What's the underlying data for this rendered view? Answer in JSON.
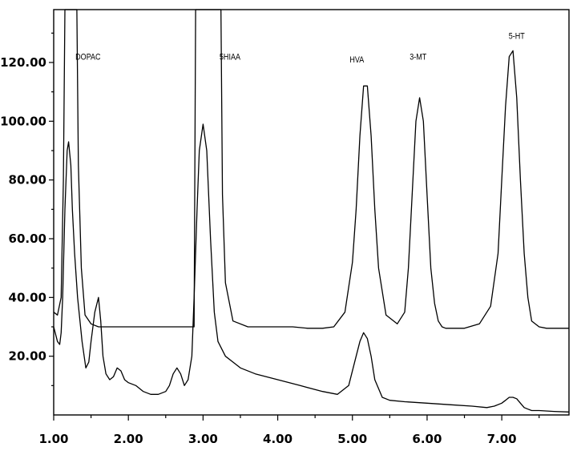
{
  "chart_data": {
    "type": "line",
    "title": "",
    "xlabel": "",
    "ylabel": "",
    "xlim": [
      1.0,
      7.9
    ],
    "ylim": [
      0,
      138
    ],
    "x_ticks": [
      {
        "value": 1,
        "label": "1.00"
      },
      {
        "value": 2,
        "label": "2.00"
      },
      {
        "value": 3,
        "label": "3.00"
      },
      {
        "value": 4,
        "label": "4.00"
      },
      {
        "value": 5,
        "label": "5.00"
      },
      {
        "value": 6,
        "label": "6.00"
      },
      {
        "value": 7,
        "label": "7.00"
      }
    ],
    "y_ticks": [
      {
        "value": 20,
        "label": "20.00"
      },
      {
        "value": 40,
        "label": "40.00"
      },
      {
        "value": 60,
        "label": "60.00"
      },
      {
        "value": 80,
        "label": "80.00"
      },
      {
        "value": 100,
        "label": "100.00"
      },
      {
        "value": 120,
        "label": "120.00"
      }
    ],
    "grid": false,
    "legend": "none",
    "annotations": [
      {
        "text": "DOPAC",
        "x": 1.46,
        "y": 121
      },
      {
        "text": "5HIAA",
        "x": 3.36,
        "y": 121
      },
      {
        "text": "HVA",
        "x": 5.06,
        "y": 120
      },
      {
        "text": "3-MT",
        "x": 5.88,
        "y": 121
      },
      {
        "text": "5-HT",
        "x": 7.2,
        "y": 128
      }
    ],
    "series": [
      {
        "x": [
          1.0,
          1.05,
          1.1,
          1.13,
          1.15,
          1.18,
          1.31,
          1.33,
          1.37,
          1.42,
          1.5,
          1.6,
          1.8,
          2.0,
          2.4,
          2.8,
          2.83,
          2.85,
          2.88,
          2.9,
          3.24,
          3.26,
          3.3,
          3.4,
          3.6,
          3.8,
          4.0,
          4.2,
          4.4,
          4.6,
          4.75,
          4.9,
          5.0,
          5.05,
          5.1,
          5.15,
          5.2,
          5.25,
          5.3,
          5.35,
          5.45,
          5.6,
          5.7,
          5.75,
          5.8,
          5.85,
          5.9,
          5.95,
          6.0,
          6.05,
          6.1,
          6.15,
          6.2,
          6.25,
          6.35,
          6.5,
          6.7,
          6.85,
          6.95,
          7.0,
          7.05,
          7.1,
          7.15,
          7.2,
          7.25,
          7.3,
          7.35,
          7.4,
          7.5,
          7.6,
          7.8,
          7.9
        ],
        "values": [
          35,
          34,
          40,
          80,
          138,
          138,
          138,
          85,
          50,
          34,
          31,
          30,
          30,
          30,
          30,
          30,
          30,
          30,
          30,
          138,
          138,
          75,
          45,
          32,
          30,
          30,
          30,
          30,
          29.5,
          29.5,
          30,
          35,
          52,
          70,
          95,
          112,
          112,
          95,
          70,
          50,
          34,
          31,
          35,
          50,
          75,
          100,
          108,
          100,
          75,
          50,
          38,
          32,
          30,
          29.5,
          29.5,
          29.5,
          31,
          37,
          55,
          80,
          105,
          122,
          124,
          108,
          80,
          55,
          40,
          32,
          30,
          29.5,
          29.5,
          29.5
        ]
      },
      {
        "x": [
          1.0,
          1.05,
          1.08,
          1.1,
          1.12,
          1.15,
          1.18,
          1.2,
          1.23,
          1.25,
          1.28,
          1.32,
          1.38,
          1.43,
          1.47,
          1.5,
          1.55,
          1.6,
          1.63,
          1.66,
          1.7,
          1.75,
          1.8,
          1.85,
          1.9,
          1.95,
          2.0,
          2.1,
          2.2,
          2.3,
          2.4,
          2.5,
          2.55,
          2.6,
          2.65,
          2.7,
          2.75,
          2.8,
          2.85,
          2.88,
          2.92,
          2.95,
          3.0,
          3.05,
          3.1,
          3.15,
          3.2,
          3.3,
          3.4,
          3.5,
          3.7,
          4.0,
          4.3,
          4.6,
          4.8,
          4.95,
          5.05,
          5.1,
          5.15,
          5.2,
          5.25,
          5.3,
          5.4,
          5.5,
          5.7,
          6.0,
          6.3,
          6.6,
          6.8,
          6.9,
          7.0,
          7.05,
          7.1,
          7.15,
          7.2,
          7.25,
          7.3,
          7.35,
          7.4,
          7.5,
          7.7,
          7.9
        ],
        "values": [
          30,
          25,
          24,
          28,
          40,
          70,
          90,
          93,
          85,
          70,
          55,
          40,
          25,
          16,
          18,
          25,
          35,
          40,
          32,
          20,
          14,
          12,
          13,
          16,
          15,
          12,
          11,
          10,
          8,
          7,
          7,
          8,
          10,
          14,
          16,
          14,
          10,
          12,
          20,
          40,
          70,
          90,
          99,
          90,
          60,
          35,
          25,
          20,
          18,
          16,
          14,
          12,
          10,
          8,
          7,
          10,
          20,
          25,
          28,
          26,
          20,
          12,
          6,
          5,
          4.5,
          4,
          3.5,
          3,
          2.5,
          3,
          4,
          5,
          6,
          6,
          5.5,
          4,
          2.5,
          2,
          1.5,
          1.5,
          1.2,
          1
        ]
      }
    ]
  }
}
